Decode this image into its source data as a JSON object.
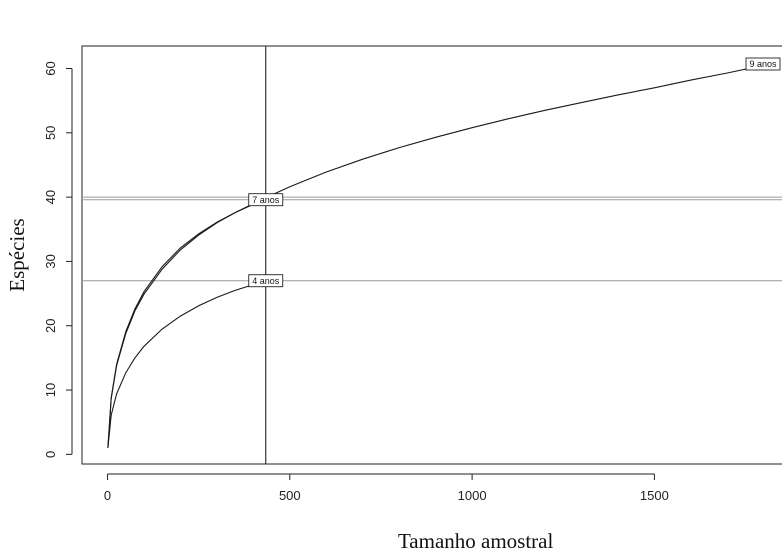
{
  "chart_data": {
    "type": "line",
    "title": "",
    "xlabel": "Tamanho amostral",
    "ylabel": "Espécies",
    "xlim": [
      -70,
      1850
    ],
    "ylim": [
      -1.5,
      63.5
    ],
    "xticks": [
      0,
      500,
      1000,
      1500
    ],
    "yticks": [
      0,
      10,
      20,
      30,
      40,
      50,
      60
    ],
    "grid": false,
    "legend": "none",
    "series": [
      {
        "name": "4 anos",
        "x": [
          1,
          10,
          25,
          50,
          75,
          100,
          150,
          200,
          250,
          300,
          350,
          400,
          434
        ],
        "y": [
          1,
          6.1,
          9.4,
          12.7,
          15.0,
          16.8,
          19.5,
          21.5,
          23.1,
          24.4,
          25.5,
          26.4,
          27.0
        ]
      },
      {
        "name": "7 anos",
        "x": [
          1,
          10,
          25,
          50,
          75,
          100,
          150,
          200,
          250,
          300,
          350,
          400,
          434
        ],
        "y": [
          1,
          8.8,
          14.0,
          19.1,
          22.6,
          25.3,
          29.2,
          32.1,
          34.3,
          36.1,
          37.6,
          38.9,
          39.6
        ]
      },
      {
        "name": "9 anos",
        "x": [
          1,
          10,
          25,
          50,
          75,
          100,
          150,
          200,
          250,
          300,
          350,
          400,
          434,
          500,
          600,
          700,
          800,
          900,
          1000,
          1100,
          1200,
          1300,
          1400,
          1500,
          1600,
          1700,
          1800
        ],
        "y": [
          1,
          8.7,
          13.8,
          18.8,
          22.3,
          24.9,
          28.8,
          31.8,
          34.1,
          36.0,
          37.6,
          39.0,
          39.9,
          41.6,
          43.9,
          45.9,
          47.7,
          49.3,
          50.8,
          52.2,
          53.5,
          54.7,
          55.9,
          57.0,
          58.2,
          59.3,
          60.5
        ]
      }
    ],
    "reference_lines": {
      "vertical_x": [
        434
      ],
      "horizontal_y": [
        27.0,
        39.6,
        40.0
      ]
    },
    "annotations": [
      {
        "text": "4 anos",
        "x": 434,
        "y": 27.0
      },
      {
        "text": "7 anos",
        "x": 434,
        "y": 39.6
      },
      {
        "text": "9 anos",
        "x": 1800,
        "y": 60.7
      }
    ]
  }
}
